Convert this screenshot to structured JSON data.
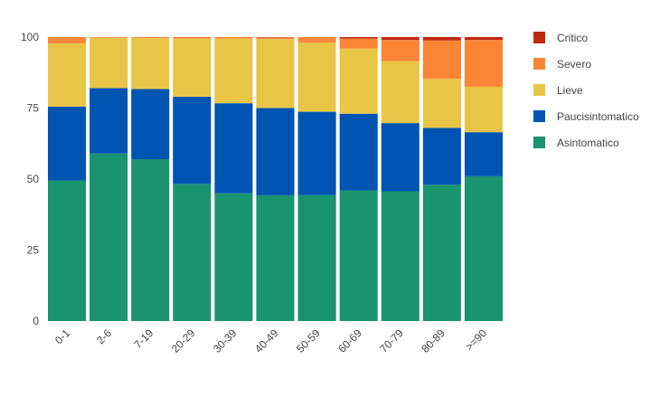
{
  "chart_data": {
    "type": "bar",
    "stacked": true,
    "categories": [
      "0-1",
      "2-6",
      "7-19",
      "20-29",
      "30-39",
      "40-49",
      "50-59",
      "60-69",
      "70-79",
      "80-89",
      ">=90"
    ],
    "ylim": [
      0,
      100
    ],
    "yticks": [
      0,
      25,
      50,
      75,
      100
    ],
    "grid": false,
    "legend_position": "right",
    "series": [
      {
        "name": "Asintomatico",
        "color": "#1a936f",
        "values": [
          49.5,
          59.0,
          57.0,
          48.3,
          45.0,
          44.3,
          44.4,
          46.0,
          45.7,
          48.0,
          51.0
        ]
      },
      {
        "name": "Paucisintomatico",
        "color": "#0055b3",
        "values": [
          26.0,
          23.0,
          24.7,
          30.7,
          31.7,
          30.7,
          29.3,
          27.0,
          24.0,
          20.0,
          15.5
        ]
      },
      {
        "name": "Lieve",
        "color": "#e8c547",
        "values": [
          22.3,
          17.8,
          18.0,
          20.5,
          22.8,
          24.3,
          24.3,
          23.0,
          21.8,
          17.3,
          16.0
        ]
      },
      {
        "name": "Severo",
        "color": "#fb8535",
        "values": [
          2.2,
          0.2,
          0.3,
          0.4,
          0.5,
          0.6,
          2.0,
          3.5,
          7.5,
          13.5,
          16.5
        ]
      },
      {
        "name": "Critico",
        "color": "#c0290f",
        "values": [
          0.0,
          0.0,
          0.0,
          0.1,
          0.0,
          0.1,
          0.0,
          0.5,
          1.0,
          1.2,
          1.0
        ]
      }
    ]
  }
}
